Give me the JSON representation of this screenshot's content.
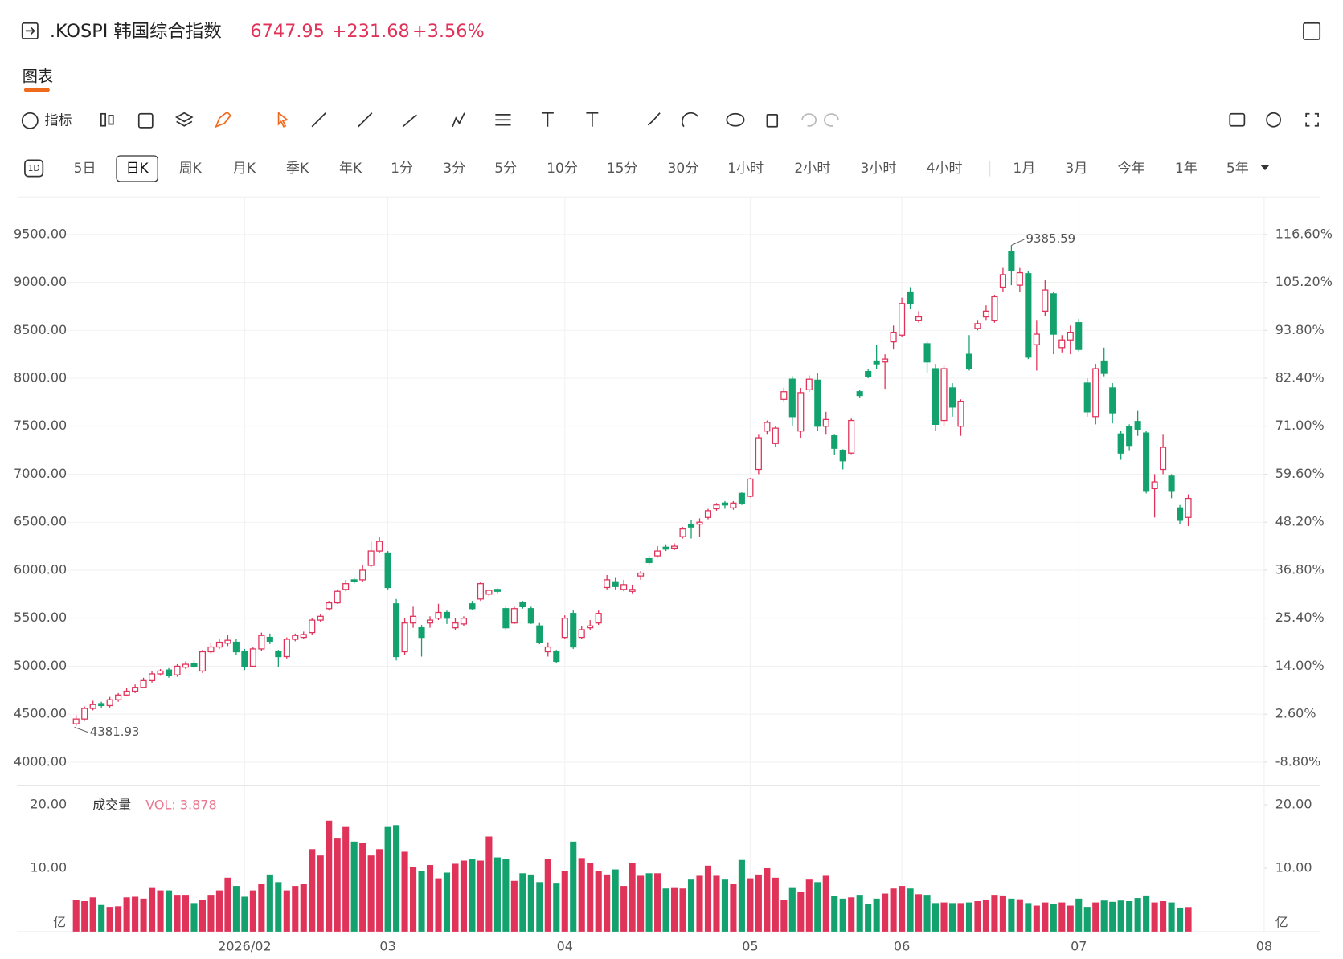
{
  "header": {
    "symbol": ".KOSPI 韩国综合指数",
    "price": "6747.95",
    "change": "+231.68",
    "change_pct": "+3.56%"
  },
  "tabs": [
    "图表"
  ],
  "toolbar": {
    "indicator": "指标"
  },
  "period_icon": "1D",
  "periods": [
    "5日",
    "日K",
    "周K",
    "月K",
    "季K",
    "年K",
    "1分",
    "3分",
    "5分",
    "10分",
    "15分",
    "30分",
    "1小时",
    "2小时",
    "3小时",
    "4小时"
  ],
  "selected": 1,
  "ranges": [
    "1月",
    "3月",
    "今年",
    "1年",
    "5年"
  ],
  "chart_data": {
    "type": "candlestick",
    "up_color": "#e0335a",
    "down_color": "#13a26e",
    "grid": true,
    "open": [
      4400,
      4450,
      4560,
      4610,
      4590,
      4650,
      4700,
      4740,
      4780,
      4850,
      4920,
      4960,
      4910,
      4990,
      5030,
      4950,
      5150,
      5200,
      5240,
      5250,
      5150,
      5000,
      5180,
      5300,
      5150,
      5100,
      5280,
      5300,
      5350,
      5480,
      5600,
      5660,
      5800,
      5900,
      5900,
      6050,
      6200,
      6180,
      5650,
      5150,
      5450,
      5400,
      5450,
      5500,
      5560,
      5400,
      5440,
      5650,
      5700,
      5750,
      5800,
      5600,
      5450,
      5660,
      5600,
      5420,
      5150,
      5150,
      5300,
      5550,
      5300,
      5400,
      5450,
      5820,
      5880,
      5800,
      5780,
      5940,
      6120,
      6150,
      6240,
      6230,
      6350,
      6480,
      6480,
      6550,
      6640,
      6700,
      6650,
      6800,
      6770,
      7050,
      7450,
      7320,
      7780,
      7990,
      7450,
      7880,
      7980,
      7500,
      7400,
      7250,
      7220,
      7860,
      8070,
      8180,
      8170,
      8380,
      8450,
      8900,
      8600,
      8360,
      8100,
      7560,
      7900,
      7500,
      8250,
      8520,
      8640,
      8600,
      8950,
      9320,
      8970,
      9090,
      8350,
      8700,
      8880,
      8320,
      8400,
      8580,
      7950,
      7600,
      8180,
      7900,
      7420,
      7500,
      7550,
      7430,
      6850,
      7050,
      6980,
      6650,
      6550
    ],
    "high": [
      4490,
      4580,
      4640,
      4630,
      4680,
      4720,
      4770,
      4810,
      4880,
      4950,
      4970,
      4980,
      5020,
      5050,
      5060,
      5170,
      5240,
      5280,
      5330,
      5280,
      5180,
      5200,
      5350,
      5340,
      5170,
      5300,
      5340,
      5360,
      5500,
      5540,
      5680,
      5800,
      5900,
      5920,
      6050,
      6300,
      6350,
      6200,
      5700,
      5500,
      5620,
      5430,
      5520,
      5650,
      5580,
      5500,
      5520,
      5680,
      5880,
      5800,
      5810,
      5620,
      5620,
      5680,
      5620,
      5450,
      5250,
      5170,
      5530,
      5580,
      5420,
      5480,
      5580,
      5950,
      5920,
      5900,
      5850,
      5990,
      6150,
      6250,
      6270,
      6280,
      6450,
      6520,
      6540,
      6640,
      6700,
      6720,
      6720,
      6810,
      6960,
      7420,
      7560,
      7500,
      7900,
      8020,
      7900,
      8030,
      8050,
      7650,
      7420,
      7260,
      7580,
      7880,
      8100,
      8350,
      8250,
      8550,
      8840,
      8950,
      8700,
      8380,
      8150,
      8130,
      7950,
      7780,
      8450,
      8600,
      8760,
      8870,
      9150,
      9385.59,
      9150,
      9120,
      8600,
      9030,
      8900,
      8450,
      8550,
      8620,
      8000,
      8150,
      8320,
      7950,
      7450,
      7520,
      7660,
      7450,
      7000,
      7420,
      7000,
      6680,
      6790
    ],
    "low": [
      4381.93,
      4430,
      4540,
      4560,
      4570,
      4630,
      4690,
      4720,
      4770,
      4830,
      4900,
      4880,
      4890,
      4970,
      4980,
      4930,
      5130,
      5180,
      5210,
      5120,
      4960,
      4990,
      5160,
      5230,
      4990,
      5080,
      5260,
      5280,
      5330,
      5460,
      5580,
      5650,
      5780,
      5860,
      5880,
      6030,
      6180,
      5800,
      5060,
      5120,
      5400,
      5100,
      5400,
      5480,
      5440,
      5380,
      5420,
      5590,
      5680,
      5730,
      5760,
      5380,
      5440,
      5600,
      5440,
      5230,
      5100,
      5030,
      5280,
      5180,
      5280,
      5380,
      5430,
      5800,
      5800,
      5780,
      5760,
      5900,
      6050,
      6130,
      6200,
      6210,
      6330,
      6330,
      6350,
      6530,
      6620,
      6640,
      6630,
      6680,
      6760,
      7000,
      7420,
      7280,
      7760,
      7500,
      7380,
      7860,
      7450,
      7420,
      7200,
      7050,
      7210,
      7800,
      8000,
      8100,
      7890,
      8300,
      8430,
      8720,
      8580,
      8060,
      7450,
      7500,
      7600,
      7400,
      8080,
      8500,
      8600,
      8580,
      8900,
      8970,
      8900,
      8200,
      8080,
      8650,
      8250,
      8270,
      8250,
      8280,
      7600,
      7520,
      8020,
      7530,
      7150,
      7250,
      7400,
      6800,
      6550,
      7000,
      6750,
      6480,
      6460
    ],
    "close": [
      4450,
      4560,
      4600,
      4590,
      4650,
      4700,
      4740,
      4780,
      4850,
      4920,
      4950,
      4900,
      5000,
      5020,
      5000,
      5150,
      5200,
      5250,
      5270,
      5150,
      5000,
      5180,
      5320,
      5260,
      5100,
      5280,
      5320,
      5330,
      5480,
      5520,
      5660,
      5780,
      5860,
      5880,
      6000,
      6200,
      6300,
      5820,
      5100,
      5450,
      5520,
      5300,
      5480,
      5560,
      5500,
      5450,
      5500,
      5600,
      5860,
      5790,
      5780,
      5400,
      5600,
      5620,
      5450,
      5250,
      5200,
      5050,
      5500,
      5200,
      5380,
      5420,
      5550,
      5900,
      5830,
      5850,
      5800,
      5970,
      6080,
      6200,
      6220,
      6250,
      6430,
      6450,
      6500,
      6620,
      6680,
      6680,
      6700,
      6700,
      6950,
      7380,
      7540,
      7480,
      7860,
      7600,
      7850,
      7990,
      7500,
      7570,
      7270,
      7140,
      7560,
      7820,
      8020,
      8150,
      8200,
      8480,
      8780,
      8780,
      8640,
      8170,
      7520,
      8100,
      7700,
      7760,
      8100,
      8570,
      8700,
      8850,
      9080,
      9120,
      9100,
      8220,
      8460,
      8920,
      8460,
      8400,
      8480,
      8300,
      7650,
      8100,
      8050,
      7640,
      7220,
      7300,
      7470,
      6830,
      6920,
      7280,
      6830,
      6520,
      6747.95
    ],
    "volume": [
      5,
      4.8,
      5.4,
      4.2,
      3.9,
      4,
      5.4,
      5.5,
      5.2,
      7,
      6.5,
      6.5,
      5.8,
      5.8,
      4.5,
      5,
      5.8,
      6.5,
      8.5,
      7.2,
      5.5,
      6.5,
      7.5,
      9,
      7.8,
      6.5,
      7.2,
      7.5,
      13,
      12,
      17.5,
      14.8,
      16.5,
      14.2,
      14,
      12,
      13,
      16.5,
      16.8,
      12.6,
      10.2,
      9.5,
      10.5,
      8.4,
      9.3,
      10.7,
      11.2,
      11.5,
      11.2,
      15,
      11.7,
      11.5,
      8,
      9.2,
      9,
      7.8,
      11.5,
      7.7,
      9.5,
      14.2,
      11.6,
      10.8,
      9.5,
      9,
      9.8,
      7.2,
      10.8,
      8.8,
      9.2,
      9.2,
      6.8,
      7,
      6.8,
      8.2,
      8.8,
      10.4,
      8.8,
      8.2,
      7.5,
      11.3,
      8.4,
      9,
      10,
      8.5,
      5,
      7,
      6.2,
      8.2,
      7.8,
      8.8,
      5.6,
      5.2,
      5.4,
      5.8,
      4.4,
      5.2,
      6,
      6.8,
      7.2,
      6.8,
      5.9,
      5.8,
      4.5,
      4.6,
      4.5,
      4.5,
      4.6,
      4.8,
      5,
      5.8,
      5.7,
      5.2,
      5.1,
      4.5,
      4.1,
      4.6,
      4.4,
      4.6,
      4.1,
      5.2,
      3.9,
      4.6,
      4.9,
      4.7,
      4.9,
      4.8,
      5.3,
      5.7,
      4.6,
      4.8,
      4.6,
      3.8,
      3.878
    ],
    "xlim": [
      -7,
      141
    ],
    "xticks": [
      {
        "value": 20,
        "label": "2026/02"
      },
      {
        "value": 37,
        "label": "03"
      },
      {
        "value": 58,
        "label": "04"
      },
      {
        "value": 80,
        "label": "05"
      },
      {
        "value": 98,
        "label": "06"
      },
      {
        "value": 119,
        "label": "07"
      },
      {
        "value": 141,
        "label": "08"
      }
    ],
    "ylim": [
      3760,
      9890
    ],
    "yticks": [
      {
        "value": 4000,
        "label": "4000.00"
      },
      {
        "value": 4500,
        "label": "4500.00"
      },
      {
        "value": 5000,
        "label": "5000.00"
      },
      {
        "value": 5500,
        "label": "5500.00"
      },
      {
        "value": 6000,
        "label": "6000.00"
      },
      {
        "value": 6500,
        "label": "6500.00"
      },
      {
        "value": 7000,
        "label": "7000.00"
      },
      {
        "value": 7500,
        "label": "7500.00"
      },
      {
        "value": 8000,
        "label": "8000.00"
      },
      {
        "value": 8500,
        "label": "8500.00"
      },
      {
        "value": 9000,
        "label": "9000.00"
      },
      {
        "value": 9500,
        "label": "9500.00"
      }
    ],
    "y2lim": [
      -14.27,
      125.49
    ],
    "y2ticks": [
      {
        "value": -8.8,
        "label": "-8.80%"
      },
      {
        "value": 2.6,
        "label": "2.60%"
      },
      {
        "value": 14,
        "label": "14.00%"
      },
      {
        "value": 25.4,
        "label": "25.40%"
      },
      {
        "value": 36.8,
        "label": "36.80%"
      },
      {
        "value": 48.2,
        "label": "48.20%"
      },
      {
        "value": 59.6,
        "label": "59.60%"
      },
      {
        "value": 71,
        "label": "71.00%"
      },
      {
        "value": 82.4,
        "label": "82.40%"
      },
      {
        "value": 93.8,
        "label": "93.80%"
      },
      {
        "value": 105.2,
        "label": "105.20%"
      },
      {
        "value": 116.6,
        "label": "116.60%"
      }
    ],
    "vlim": [
      0,
      23.1
    ],
    "vticks": [
      {
        "value": 10,
        "label": "10.00"
      },
      {
        "value": 20,
        "label": "20.00"
      }
    ],
    "volume_title": "成交量",
    "volume_legend": "VOL: 3.878",
    "volume_unit": "亿",
    "max_label": "9385.59",
    "min_label": "4381.93"
  }
}
